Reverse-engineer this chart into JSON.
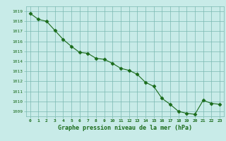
{
  "x": [
    0,
    1,
    2,
    3,
    4,
    5,
    6,
    7,
    8,
    9,
    10,
    11,
    12,
    13,
    14,
    15,
    16,
    17,
    18,
    19,
    20,
    21,
    22,
    23
  ],
  "y": [
    1018.8,
    1018.2,
    1018.0,
    1017.1,
    1016.2,
    1015.5,
    1014.9,
    1014.8,
    1014.3,
    1014.2,
    1013.8,
    1013.3,
    1013.1,
    1012.7,
    1011.9,
    1011.5,
    1010.3,
    1009.7,
    1009.0,
    1008.8,
    1008.7,
    1010.1,
    1009.8,
    1009.7
  ],
  "line_color": "#1a6b1a",
  "marker_color": "#1a6b1a",
  "bg_color": "#c8ebe8",
  "grid_color": "#7ab8b0",
  "xlabel": "Graphe pression niveau de la mer (hPa)",
  "xlabel_color": "#1a6b1a",
  "tick_color": "#1a6b1a",
  "ylim_min": 1008.5,
  "ylim_max": 1019.5,
  "xlim_min": -0.5,
  "xlim_max": 23.5,
  "yticks": [
    1009,
    1010,
    1011,
    1012,
    1013,
    1014,
    1015,
    1016,
    1017,
    1018,
    1019
  ],
  "xticks": [
    0,
    1,
    2,
    3,
    4,
    5,
    6,
    7,
    8,
    9,
    10,
    11,
    12,
    13,
    14,
    15,
    16,
    17,
    18,
    19,
    20,
    21,
    22,
    23
  ]
}
